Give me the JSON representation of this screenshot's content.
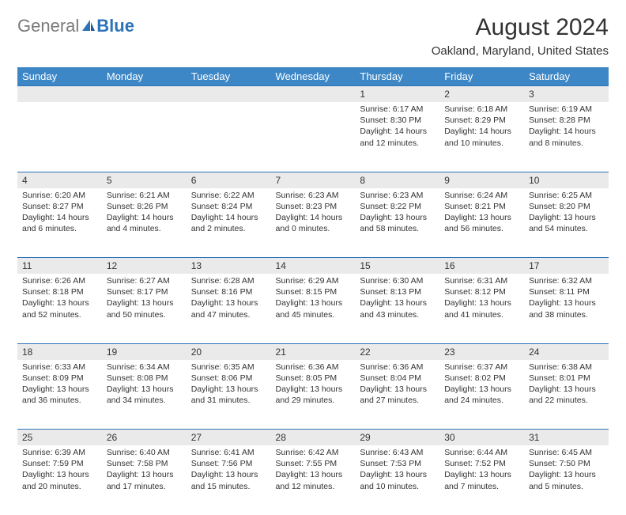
{
  "logo": {
    "text1": "General",
    "text2": "Blue"
  },
  "title": "August 2024",
  "location": "Oakland, Maryland, United States",
  "colors": {
    "header_bg": "#3d87c7",
    "header_text": "#ffffff",
    "daynum_bg": "#eaeaea",
    "border_top": "#2d73b8",
    "text": "#333333",
    "logo_gray": "#7a7a7a",
    "logo_blue": "#2d73b8"
  },
  "weekdays": [
    "Sunday",
    "Monday",
    "Tuesday",
    "Wednesday",
    "Thursday",
    "Friday",
    "Saturday"
  ],
  "weeks": [
    [
      {
        "n": "",
        "sunrise": "",
        "sunset": "",
        "daylight": ""
      },
      {
        "n": "",
        "sunrise": "",
        "sunset": "",
        "daylight": ""
      },
      {
        "n": "",
        "sunrise": "",
        "sunset": "",
        "daylight": ""
      },
      {
        "n": "",
        "sunrise": "",
        "sunset": "",
        "daylight": ""
      },
      {
        "n": "1",
        "sunrise": "Sunrise: 6:17 AM",
        "sunset": "Sunset: 8:30 PM",
        "daylight": "Daylight: 14 hours and 12 minutes."
      },
      {
        "n": "2",
        "sunrise": "Sunrise: 6:18 AM",
        "sunset": "Sunset: 8:29 PM",
        "daylight": "Daylight: 14 hours and 10 minutes."
      },
      {
        "n": "3",
        "sunrise": "Sunrise: 6:19 AM",
        "sunset": "Sunset: 8:28 PM",
        "daylight": "Daylight: 14 hours and 8 minutes."
      }
    ],
    [
      {
        "n": "4",
        "sunrise": "Sunrise: 6:20 AM",
        "sunset": "Sunset: 8:27 PM",
        "daylight": "Daylight: 14 hours and 6 minutes."
      },
      {
        "n": "5",
        "sunrise": "Sunrise: 6:21 AM",
        "sunset": "Sunset: 8:26 PM",
        "daylight": "Daylight: 14 hours and 4 minutes."
      },
      {
        "n": "6",
        "sunrise": "Sunrise: 6:22 AM",
        "sunset": "Sunset: 8:24 PM",
        "daylight": "Daylight: 14 hours and 2 minutes."
      },
      {
        "n": "7",
        "sunrise": "Sunrise: 6:23 AM",
        "sunset": "Sunset: 8:23 PM",
        "daylight": "Daylight: 14 hours and 0 minutes."
      },
      {
        "n": "8",
        "sunrise": "Sunrise: 6:23 AM",
        "sunset": "Sunset: 8:22 PM",
        "daylight": "Daylight: 13 hours and 58 minutes."
      },
      {
        "n": "9",
        "sunrise": "Sunrise: 6:24 AM",
        "sunset": "Sunset: 8:21 PM",
        "daylight": "Daylight: 13 hours and 56 minutes."
      },
      {
        "n": "10",
        "sunrise": "Sunrise: 6:25 AM",
        "sunset": "Sunset: 8:20 PM",
        "daylight": "Daylight: 13 hours and 54 minutes."
      }
    ],
    [
      {
        "n": "11",
        "sunrise": "Sunrise: 6:26 AM",
        "sunset": "Sunset: 8:18 PM",
        "daylight": "Daylight: 13 hours and 52 minutes."
      },
      {
        "n": "12",
        "sunrise": "Sunrise: 6:27 AM",
        "sunset": "Sunset: 8:17 PM",
        "daylight": "Daylight: 13 hours and 50 minutes."
      },
      {
        "n": "13",
        "sunrise": "Sunrise: 6:28 AM",
        "sunset": "Sunset: 8:16 PM",
        "daylight": "Daylight: 13 hours and 47 minutes."
      },
      {
        "n": "14",
        "sunrise": "Sunrise: 6:29 AM",
        "sunset": "Sunset: 8:15 PM",
        "daylight": "Daylight: 13 hours and 45 minutes."
      },
      {
        "n": "15",
        "sunrise": "Sunrise: 6:30 AM",
        "sunset": "Sunset: 8:13 PM",
        "daylight": "Daylight: 13 hours and 43 minutes."
      },
      {
        "n": "16",
        "sunrise": "Sunrise: 6:31 AM",
        "sunset": "Sunset: 8:12 PM",
        "daylight": "Daylight: 13 hours and 41 minutes."
      },
      {
        "n": "17",
        "sunrise": "Sunrise: 6:32 AM",
        "sunset": "Sunset: 8:11 PM",
        "daylight": "Daylight: 13 hours and 38 minutes."
      }
    ],
    [
      {
        "n": "18",
        "sunrise": "Sunrise: 6:33 AM",
        "sunset": "Sunset: 8:09 PM",
        "daylight": "Daylight: 13 hours and 36 minutes."
      },
      {
        "n": "19",
        "sunrise": "Sunrise: 6:34 AM",
        "sunset": "Sunset: 8:08 PM",
        "daylight": "Daylight: 13 hours and 34 minutes."
      },
      {
        "n": "20",
        "sunrise": "Sunrise: 6:35 AM",
        "sunset": "Sunset: 8:06 PM",
        "daylight": "Daylight: 13 hours and 31 minutes."
      },
      {
        "n": "21",
        "sunrise": "Sunrise: 6:36 AM",
        "sunset": "Sunset: 8:05 PM",
        "daylight": "Daylight: 13 hours and 29 minutes."
      },
      {
        "n": "22",
        "sunrise": "Sunrise: 6:36 AM",
        "sunset": "Sunset: 8:04 PM",
        "daylight": "Daylight: 13 hours and 27 minutes."
      },
      {
        "n": "23",
        "sunrise": "Sunrise: 6:37 AM",
        "sunset": "Sunset: 8:02 PM",
        "daylight": "Daylight: 13 hours and 24 minutes."
      },
      {
        "n": "24",
        "sunrise": "Sunrise: 6:38 AM",
        "sunset": "Sunset: 8:01 PM",
        "daylight": "Daylight: 13 hours and 22 minutes."
      }
    ],
    [
      {
        "n": "25",
        "sunrise": "Sunrise: 6:39 AM",
        "sunset": "Sunset: 7:59 PM",
        "daylight": "Daylight: 13 hours and 20 minutes."
      },
      {
        "n": "26",
        "sunrise": "Sunrise: 6:40 AM",
        "sunset": "Sunset: 7:58 PM",
        "daylight": "Daylight: 13 hours and 17 minutes."
      },
      {
        "n": "27",
        "sunrise": "Sunrise: 6:41 AM",
        "sunset": "Sunset: 7:56 PM",
        "daylight": "Daylight: 13 hours and 15 minutes."
      },
      {
        "n": "28",
        "sunrise": "Sunrise: 6:42 AM",
        "sunset": "Sunset: 7:55 PM",
        "daylight": "Daylight: 13 hours and 12 minutes."
      },
      {
        "n": "29",
        "sunrise": "Sunrise: 6:43 AM",
        "sunset": "Sunset: 7:53 PM",
        "daylight": "Daylight: 13 hours and 10 minutes."
      },
      {
        "n": "30",
        "sunrise": "Sunrise: 6:44 AM",
        "sunset": "Sunset: 7:52 PM",
        "daylight": "Daylight: 13 hours and 7 minutes."
      },
      {
        "n": "31",
        "sunrise": "Sunrise: 6:45 AM",
        "sunset": "Sunset: 7:50 PM",
        "daylight": "Daylight: 13 hours and 5 minutes."
      }
    ]
  ]
}
